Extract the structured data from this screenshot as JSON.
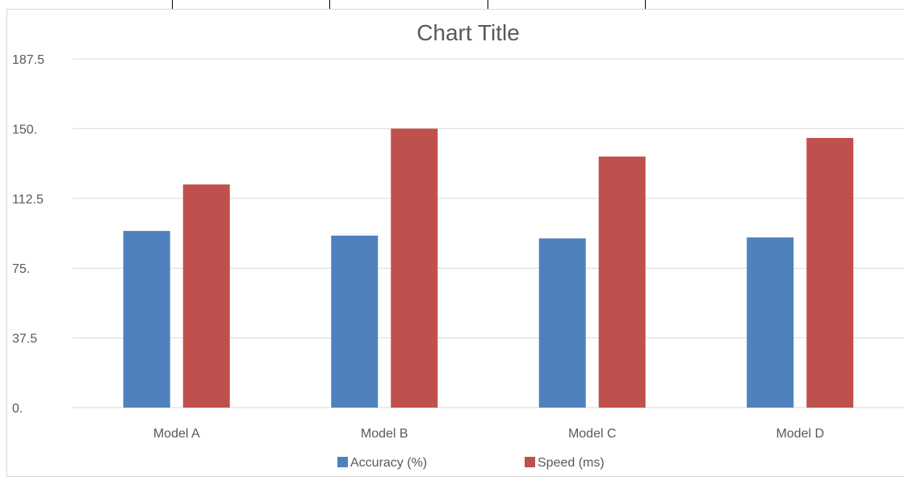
{
  "chart_data": {
    "type": "bar",
    "title": "Chart Title",
    "categories": [
      "Model A",
      "Model B",
      "Model C",
      "Model D"
    ],
    "series": [
      {
        "name": "Accuracy (%)",
        "color": "#4f81bd",
        "values": [
          95,
          92.5,
          91,
          91.5
        ]
      },
      {
        "name": "Speed (ms)",
        "color": "#c0504d",
        "values": [
          120,
          150,
          135,
          145
        ]
      }
    ],
    "y_ticks": [
      "0.",
      "37.5",
      "75.",
      "112.5",
      "150.",
      "187.5"
    ],
    "ylim": [
      0,
      187.5
    ],
    "grid": true,
    "legend_position": "bottom"
  }
}
